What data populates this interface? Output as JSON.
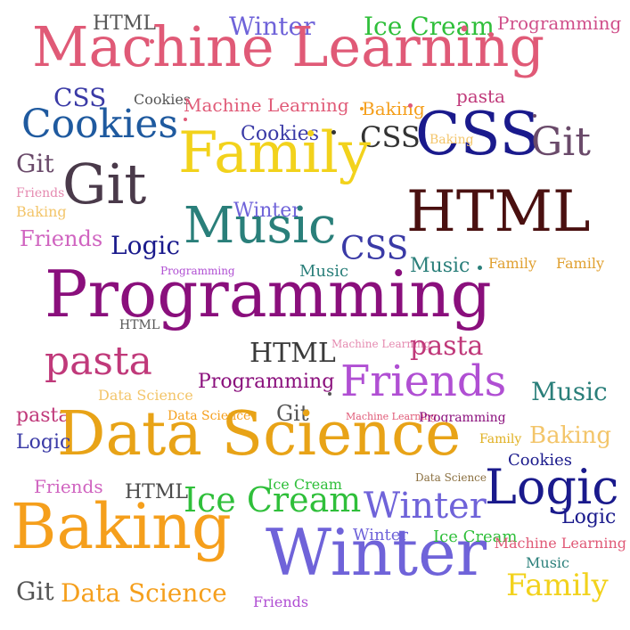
{
  "colors": {
    "pink": "#e05a77",
    "purple": "#8a0f7c",
    "violet": "#6f63d9",
    "green": "#2fbf3a",
    "orange": "#f59f1c",
    "yellow": "#f2d21c",
    "navy": "#1a1a8c",
    "teal": "#2a7f7a",
    "brown": "#4a1010",
    "blue": "#3a3aa6",
    "lightorange": "#f3c56a",
    "magenta": "#b04fd3",
    "plum": "#6a4a6a",
    "lightpink": "#e58ab0"
  },
  "words": [
    {
      "text": "HTML",
      "color": "#555555"
    },
    {
      "text": "Winter",
      "color": "#6f63d9"
    },
    {
      "text": "Ice Cream",
      "color": "#2fbf3a"
    },
    {
      "text": "Programming",
      "color": "#d04f8a"
    },
    {
      "text": "Machine Learning",
      "color": "#e05a77"
    },
    {
      "text": "CSS",
      "color": "#3a3aa6"
    },
    {
      "text": "Cookies",
      "color": "#555555"
    },
    {
      "text": "Machine Learning",
      "color": "#e05a77"
    },
    {
      "text": "pasta",
      "color": "#c0397a"
    },
    {
      "text": "Cookies",
      "color": "#1f5a9f"
    },
    {
      "text": "Baking",
      "color": "#f59f1c"
    },
    {
      "text": "CSS",
      "color": "#1a1a8c"
    },
    {
      "text": "Baking",
      "color": "#f3c56a"
    },
    {
      "text": "Git",
      "color": "#6a4a6a"
    },
    {
      "text": "Cookies",
      "color": "#3a3aa6"
    },
    {
      "text": "CSS",
      "color": "#333333"
    },
    {
      "text": "Family",
      "color": "#f2d21c"
    },
    {
      "text": "Git",
      "color": "#6a4a6a"
    },
    {
      "text": "Git",
      "color": "#4a3a4a"
    },
    {
      "text": "Friends",
      "color": "#e58ab0"
    },
    {
      "text": "Baking",
      "color": "#f3c56a"
    },
    {
      "text": "Winter",
      "color": "#6f63d9"
    },
    {
      "text": "HTML",
      "color": "#4a1010"
    },
    {
      "text": "Friends",
      "color": "#d064c0"
    },
    {
      "text": "Music",
      "color": "#2a7f7a"
    },
    {
      "text": "Logic",
      "color": "#1a1a8c"
    },
    {
      "text": "CSS",
      "color": "#3a3aa6"
    },
    {
      "text": "Music",
      "color": "#2a7f7a"
    },
    {
      "text": "Family",
      "color": "#e0a030"
    },
    {
      "text": "Family",
      "color": "#e0a030"
    },
    {
      "text": "Programming",
      "color": "#b04fd3"
    },
    {
      "text": "Music",
      "color": "#2a7f7a"
    },
    {
      "text": "Programming",
      "color": "#8a0f7c"
    },
    {
      "text": "HTML",
      "color": "#555555"
    },
    {
      "text": "Machine Learning",
      "color": "#e58ab0"
    },
    {
      "text": "HTML",
      "color": "#3a3a3a"
    },
    {
      "text": "pasta",
      "color": "#c0397a"
    },
    {
      "text": "pasta",
      "color": "#c0397a"
    },
    {
      "text": "Programming",
      "color": "#8a0f7c"
    },
    {
      "text": "Friends",
      "color": "#b04fd3"
    },
    {
      "text": "Data Science",
      "color": "#f3c56a"
    },
    {
      "text": "Music",
      "color": "#2a7f7a"
    },
    {
      "text": "Data Science",
      "color": "#f59f1c"
    },
    {
      "text": "Git",
      "color": "#555555"
    },
    {
      "text": "Machine Learning",
      "color": "#e05a77"
    },
    {
      "text": "Programming",
      "color": "#8a0f7c"
    },
    {
      "text": "pasta",
      "color": "#c0397a"
    },
    {
      "text": "Data Science",
      "color": "#e8a317"
    },
    {
      "text": "Family",
      "color": "#e0b020"
    },
    {
      "text": "Baking",
      "color": "#f3c56a"
    },
    {
      "text": "Logic",
      "color": "#3a3aa6"
    },
    {
      "text": "Cookies",
      "color": "#1a1a8c"
    },
    {
      "text": "Data Science",
      "color": "#8a6f3f"
    },
    {
      "text": "Friends",
      "color": "#d064c0"
    },
    {
      "text": "HTML",
      "color": "#4a4a4a"
    },
    {
      "text": "Ice Cream",
      "color": "#2fbf3a"
    },
    {
      "text": "Ice Cream",
      "color": "#2fbf3a"
    },
    {
      "text": "Winter",
      "color": "#6f63d9"
    },
    {
      "text": "Logic",
      "color": "#1a1a8c"
    },
    {
      "text": "Logic",
      "color": "#1a1a8c"
    },
    {
      "text": "Baking",
      "color": "#f59f1c"
    },
    {
      "text": "Winter",
      "color": "#6f63d9"
    },
    {
      "text": "Winter",
      "color": "#6f63d9"
    },
    {
      "text": "Ice Cream",
      "color": "#2fbf3a"
    },
    {
      "text": "Machine Learning",
      "color": "#e05a77"
    },
    {
      "text": "Music",
      "color": "#2a7f7a"
    },
    {
      "text": "Git",
      "color": "#555555"
    },
    {
      "text": "Data Science",
      "color": "#f59f1c"
    },
    {
      "text": "Friends",
      "color": "#b04fd3"
    },
    {
      "text": "Family",
      "color": "#f2d21c"
    }
  ]
}
